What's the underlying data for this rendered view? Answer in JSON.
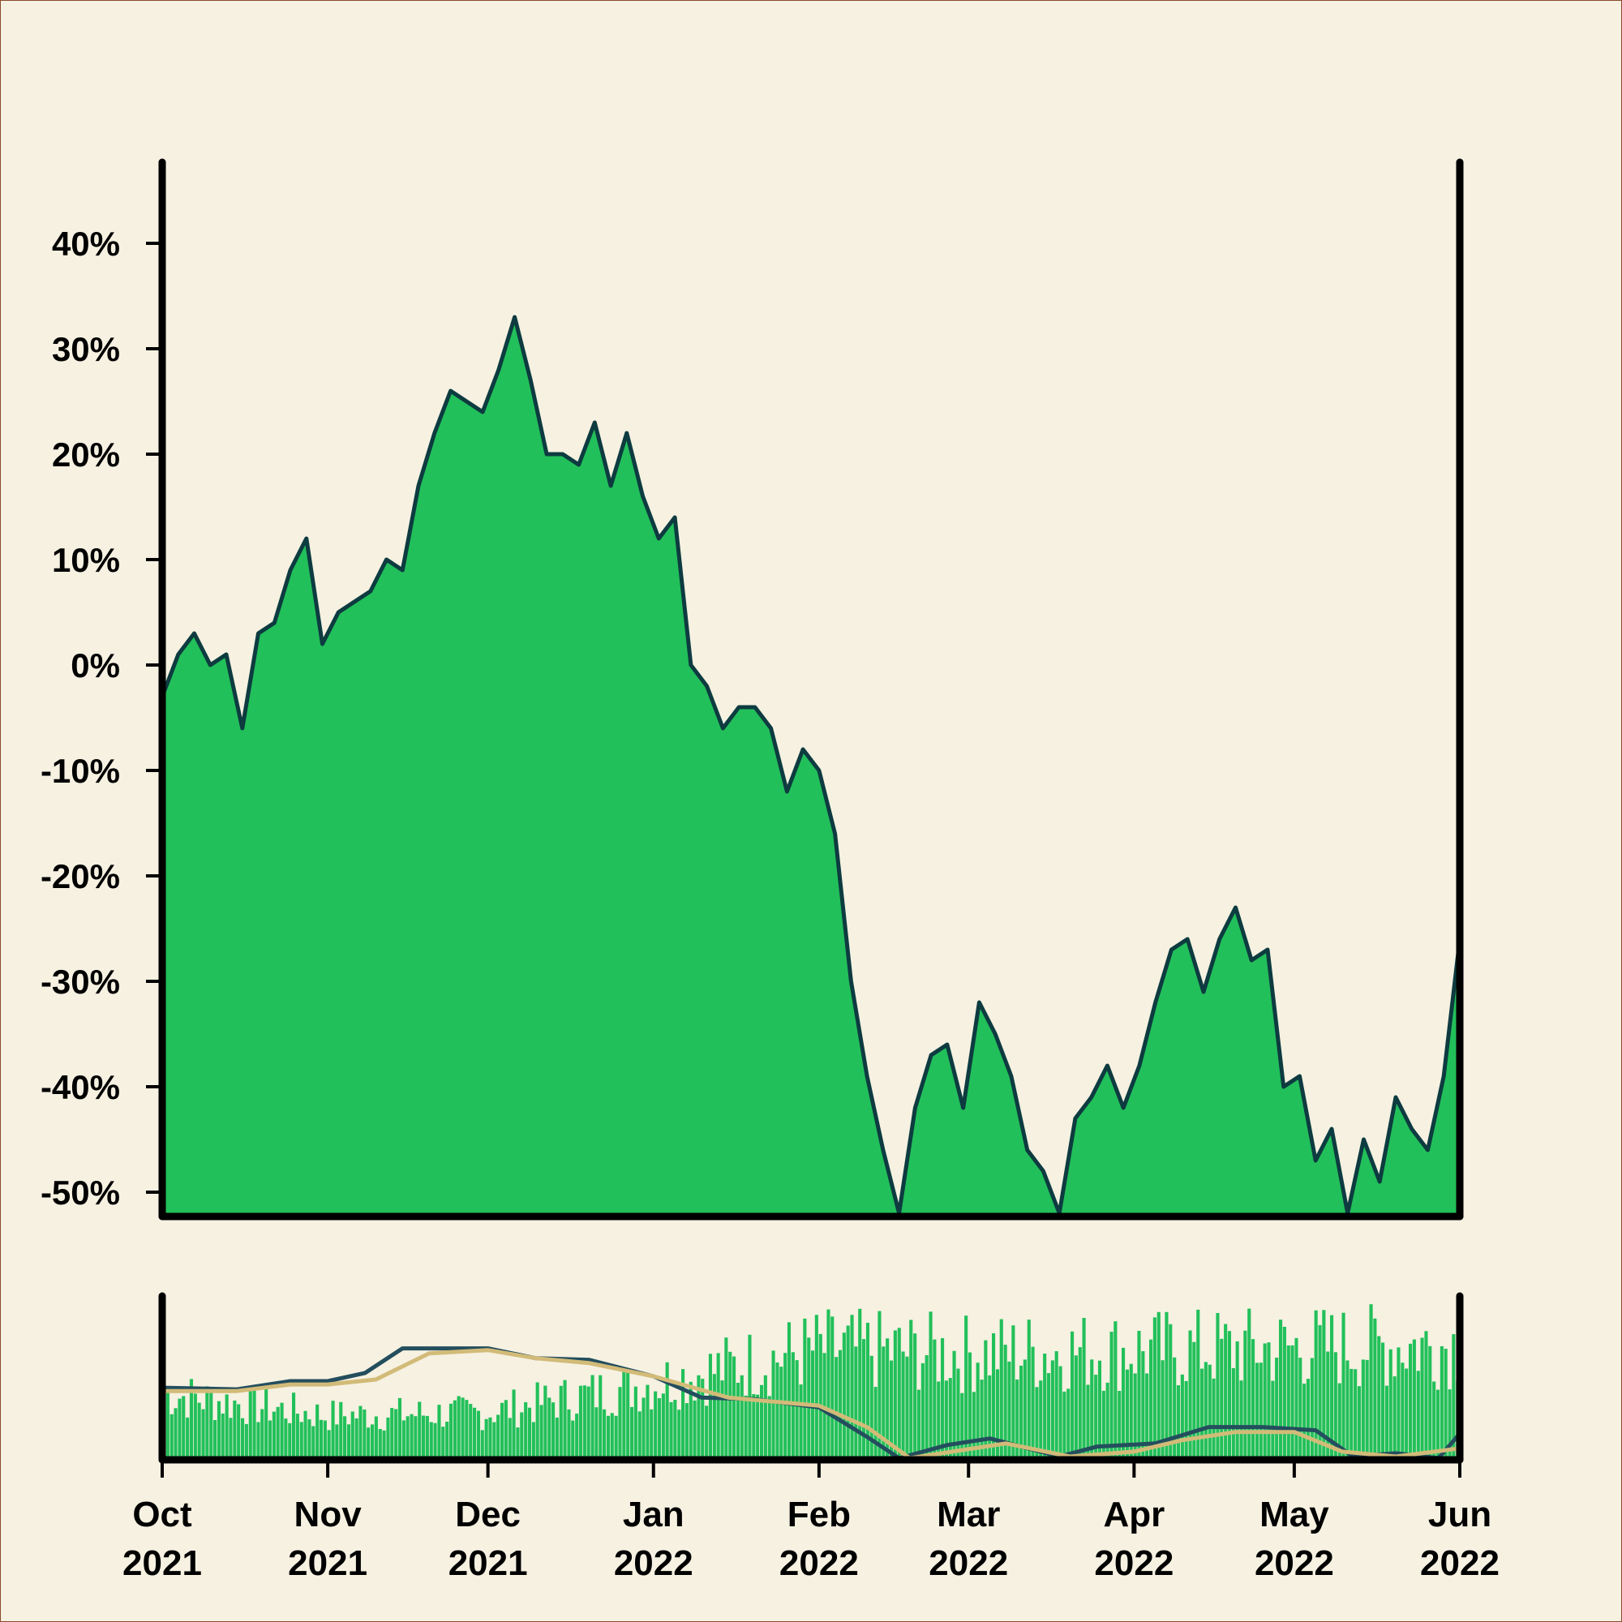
{
  "colors": {
    "background": "#f6f1e1",
    "border": "#8b4a2b",
    "area_fill": "#22c05a",
    "price_line": "#0d3b40",
    "axis": "#000000",
    "indicator_fast": "#244e5e",
    "indicator_slow": "#d2bb78"
  },
  "chart_data": [
    {
      "type": "area",
      "name": "main-panel",
      "x_range": [
        "2021-10-01",
        "2022-06-01"
      ],
      "ylim": [
        -50,
        50
      ],
      "y_ticks": [
        40,
        30,
        20,
        10,
        0,
        -10,
        -20,
        -30,
        -40,
        -50
      ],
      "y_tick_labels": [
        "40%",
        "30%",
        "20%",
        "10%",
        "0%",
        "-10%",
        "-20%",
        "-30%",
        "-40%",
        "-50%"
      ],
      "baseline": -52,
      "series": [
        {
          "points": [
            [
              "2021-10-01",
              -3
            ],
            [
              "2021-10-04",
              1
            ],
            [
              "2021-10-07",
              3
            ],
            [
              "2021-10-10",
              0
            ],
            [
              "2021-10-13",
              1
            ],
            [
              "2021-10-16",
              -6
            ],
            [
              "2021-10-19",
              3
            ],
            [
              "2021-10-22",
              4
            ],
            [
              "2021-10-25",
              9
            ],
            [
              "2021-10-28",
              12
            ],
            [
              "2021-10-31",
              2
            ],
            [
              "2021-11-03",
              5
            ],
            [
              "2021-11-06",
              6
            ],
            [
              "2021-11-09",
              7
            ],
            [
              "2021-11-12",
              10
            ],
            [
              "2021-11-15",
              9
            ],
            [
              "2021-11-18",
              17
            ],
            [
              "2021-11-21",
              22
            ],
            [
              "2021-11-24",
              26
            ],
            [
              "2021-11-27",
              25
            ],
            [
              "2021-11-30",
              24
            ],
            [
              "2021-12-03",
              28
            ],
            [
              "2021-12-06",
              33
            ],
            [
              "2021-12-09",
              27
            ],
            [
              "2021-12-12",
              20
            ],
            [
              "2021-12-15",
              20
            ],
            [
              "2021-12-18",
              19
            ],
            [
              "2021-12-21",
              23
            ],
            [
              "2021-12-24",
              17
            ],
            [
              "2021-12-27",
              22
            ],
            [
              "2021-12-30",
              16
            ],
            [
              "2022-01-02",
              12
            ],
            [
              "2022-01-05",
              14
            ],
            [
              "2022-01-08",
              0
            ],
            [
              "2022-01-11",
              -2
            ],
            [
              "2022-01-14",
              -6
            ],
            [
              "2022-01-17",
              -4
            ],
            [
              "2022-01-20",
              -4
            ],
            [
              "2022-01-23",
              -6
            ],
            [
              "2022-01-26",
              -12
            ],
            [
              "2022-01-29",
              -8
            ],
            [
              "2022-02-01",
              -10
            ],
            [
              "2022-02-04",
              -16
            ],
            [
              "2022-02-07",
              -30
            ],
            [
              "2022-02-10",
              -39
            ],
            [
              "2022-02-13",
              -46
            ],
            [
              "2022-02-16",
              -52
            ],
            [
              "2022-02-19",
              -42
            ],
            [
              "2022-02-22",
              -37
            ],
            [
              "2022-02-25",
              -36
            ],
            [
              "2022-02-28",
              -42
            ],
            [
              "2022-03-03",
              -32
            ],
            [
              "2022-03-06",
              -35
            ],
            [
              "2022-03-09",
              -39
            ],
            [
              "2022-03-12",
              -46
            ],
            [
              "2022-03-15",
              -48
            ],
            [
              "2022-03-18",
              -52
            ],
            [
              "2022-03-21",
              -43
            ],
            [
              "2022-03-24",
              -41
            ],
            [
              "2022-03-27",
              -38
            ],
            [
              "2022-03-30",
              -42
            ],
            [
              "2022-04-02",
              -38
            ],
            [
              "2022-04-05",
              -32
            ],
            [
              "2022-04-08",
              -27
            ],
            [
              "2022-04-11",
              -26
            ],
            [
              "2022-04-14",
              -31
            ],
            [
              "2022-04-17",
              -26
            ],
            [
              "2022-04-20",
              -23
            ],
            [
              "2022-04-23",
              -28
            ],
            [
              "2022-04-26",
              -27
            ],
            [
              "2022-04-29",
              -40
            ],
            [
              "2022-05-02",
              -39
            ],
            [
              "2022-05-05",
              -47
            ],
            [
              "2022-05-08",
              -44
            ],
            [
              "2022-05-11",
              -52
            ],
            [
              "2022-05-14",
              -45
            ],
            [
              "2022-05-17",
              -49
            ],
            [
              "2022-05-20",
              -41
            ],
            [
              "2022-05-23",
              -44
            ],
            [
              "2022-05-26",
              -46
            ],
            [
              "2022-05-29",
              -39
            ],
            [
              "2022-06-01",
              -26
            ]
          ]
        }
      ]
    },
    {
      "type": "bar+line",
      "name": "indicator-panel",
      "x_range": [
        "2021-10-01",
        "2022-06-01"
      ],
      "ylim": [
        0,
        100
      ],
      "x_ticks": [
        "2021-10-01",
        "2021-11-01",
        "2021-12-01",
        "2022-01-01",
        "2022-02-01",
        "2022-03-01",
        "2022-04-01",
        "2022-05-01",
        "2022-06-01"
      ],
      "x_tick_labels": [
        [
          "Oct",
          "2021"
        ],
        [
          "Nov",
          "2021"
        ],
        [
          "Dec",
          "2021"
        ],
        [
          "Jan",
          "2022"
        ],
        [
          "Feb",
          "2022"
        ],
        [
          "Mar",
          "2022"
        ],
        [
          "Apr",
          "2022"
        ],
        [
          "May",
          "2022"
        ],
        [
          "Jun",
          "2022"
        ]
      ],
      "bar_level": [
        [
          "2021-10-01",
          45
        ],
        [
          "2021-11-01",
          30
        ],
        [
          "2021-12-01",
          32
        ],
        [
          "2022-01-01",
          52
        ],
        [
          "2022-02-01",
          75
        ],
        [
          "2022-03-01",
          72
        ],
        [
          "2022-04-01",
          74
        ],
        [
          "2022-05-01",
          76
        ],
        [
          "2022-06-01",
          78
        ]
      ],
      "lines": [
        {
          "points": [
            [
              "2021-10-01",
              44
            ],
            [
              "2021-10-15",
              43
            ],
            [
              "2021-10-25",
              48
            ],
            [
              "2021-11-01",
              48
            ],
            [
              "2021-11-08",
              53
            ],
            [
              "2021-11-15",
              68
            ],
            [
              "2021-11-25",
              68
            ],
            [
              "2021-12-01",
              68
            ],
            [
              "2021-12-10",
              62
            ],
            [
              "2021-12-20",
              61
            ],
            [
              "2022-01-01",
              51
            ],
            [
              "2022-01-10",
              38
            ],
            [
              "2022-01-20",
              37
            ],
            [
              "2022-02-01",
              32
            ],
            [
              "2022-02-10",
              14
            ],
            [
              "2022-02-16",
              1
            ],
            [
              "2022-02-25",
              9
            ],
            [
              "2022-03-05",
              13
            ],
            [
              "2022-03-18",
              2
            ],
            [
              "2022-03-25",
              8
            ],
            [
              "2022-04-05",
              10
            ],
            [
              "2022-04-15",
              20
            ],
            [
              "2022-04-25",
              20
            ],
            [
              "2022-05-05",
              18
            ],
            [
              "2022-05-12",
              2
            ],
            [
              "2022-05-20",
              4
            ],
            [
              "2022-05-28",
              1
            ],
            [
              "2022-06-01",
              16
            ]
          ]
        },
        {
          "points": [
            [
              "2021-10-01",
              42
            ],
            [
              "2021-10-15",
              42
            ],
            [
              "2021-10-25",
              46
            ],
            [
              "2021-11-01",
              46
            ],
            [
              "2021-11-10",
              49
            ],
            [
              "2021-11-20",
              65
            ],
            [
              "2021-12-01",
              67
            ],
            [
              "2021-12-10",
              62
            ],
            [
              "2021-12-20",
              59
            ],
            [
              "2022-01-01",
              51
            ],
            [
              "2022-01-15",
              38
            ],
            [
              "2022-02-01",
              33
            ],
            [
              "2022-02-10",
              20
            ],
            [
              "2022-02-18",
              1
            ],
            [
              "2022-02-28",
              6
            ],
            [
              "2022-03-08",
              10
            ],
            [
              "2022-03-20",
              2
            ],
            [
              "2022-04-01",
              5
            ],
            [
              "2022-04-10",
              12
            ],
            [
              "2022-04-20",
              17
            ],
            [
              "2022-05-01",
              17
            ],
            [
              "2022-05-10",
              5
            ],
            [
              "2022-05-20",
              2
            ],
            [
              "2022-06-01",
              7
            ]
          ]
        }
      ]
    }
  ]
}
